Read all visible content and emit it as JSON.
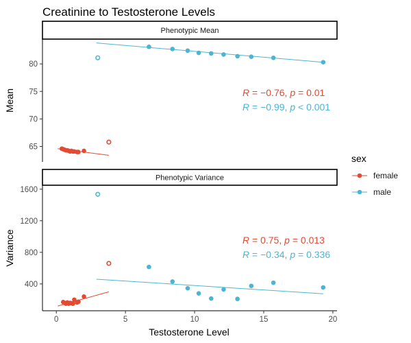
{
  "chart_data": {
    "type": "scatter",
    "title": "Creatinine to Testosterone Levels",
    "xlabel": "Testosterone Level",
    "xlim": [
      -1,
      20.3
    ],
    "x_ticks": [
      0,
      5,
      10,
      15,
      20
    ],
    "legend": {
      "title": "sex",
      "position": "right",
      "entries": [
        {
          "label": "female",
          "color": "#E24A33"
        },
        {
          "label": "male",
          "color": "#4CB5D3"
        }
      ]
    },
    "grid": false,
    "facets": [
      {
        "strip": "Phenotypic Mean",
        "ylabel": "Mean",
        "ylim": [
          62.2,
          84.5
        ],
        "y_ticks": [
          65,
          70,
          75,
          80
        ],
        "stats": [
          {
            "sex": "female",
            "r": "−0.76",
            "p_op": "=",
            "p": "0.01"
          },
          {
            "sex": "male",
            "r": "−0.99",
            "p_op": "<",
            "p": "0.001"
          }
        ],
        "series": [
          {
            "sex": "female",
            "points": [
              [
                0.4,
                64.6
              ],
              [
                0.5,
                64.5
              ],
              [
                0.6,
                64.4
              ],
              [
                0.7,
                64.3
              ],
              [
                0.8,
                64.3
              ],
              [
                0.9,
                64.2
              ],
              [
                1.0,
                64.1
              ],
              [
                1.1,
                64.2
              ],
              [
                1.2,
                64.1
              ],
              [
                1.3,
                64.1
              ],
              [
                1.5,
                64.0
              ],
              [
                1.6,
                64.0
              ],
              [
                2.0,
                64.2
              ]
            ],
            "outliers": [
              [
                3.8,
                65.8
              ]
            ],
            "fit": [
              [
                0.1,
                64.6
              ],
              [
                3.8,
                63.4
              ]
            ]
          },
          {
            "sex": "male",
            "points": [
              [
                6.7,
                83.1
              ],
              [
                8.4,
                82.7
              ],
              [
                9.5,
                82.4
              ],
              [
                10.3,
                82.0
              ],
              [
                11.2,
                81.9
              ],
              [
                12.1,
                81.7
              ],
              [
                13.1,
                81.4
              ],
              [
                14.1,
                81.3
              ],
              [
                15.7,
                81.1
              ],
              [
                19.3,
                80.3
              ]
            ],
            "outliers": [
              [
                3.0,
                81.1
              ]
            ],
            "fit": [
              [
                2.9,
                83.8
              ],
              [
                19.3,
                80.3
              ]
            ]
          }
        ]
      },
      {
        "strip": "Phenotypic Variance",
        "ylabel": "Variance",
        "ylim": [
          60,
          1650
        ],
        "y_ticks": [
          400,
          800,
          1200,
          1600
        ],
        "stats": [
          {
            "sex": "female",
            "r": "0.75",
            "p_op": "=",
            "p": "0.013"
          },
          {
            "sex": "male",
            "r": "−0.34",
            "p_op": "=",
            "p": "0.336"
          }
        ],
        "series": [
          {
            "sex": "female",
            "points": [
              [
                0.5,
                170
              ],
              [
                0.6,
                160
              ],
              [
                0.7,
                150
              ],
              [
                0.8,
                165
              ],
              [
                0.9,
                150
              ],
              [
                1.0,
                160
              ],
              [
                1.1,
                155
              ],
              [
                1.2,
                150
              ],
              [
                1.3,
                200
              ],
              [
                1.5,
                165
              ],
              [
                1.6,
                175
              ],
              [
                2.0,
                240
              ]
            ],
            "outliers": [
              [
                3.8,
                660
              ]
            ],
            "fit": [
              [
                0.1,
                120
              ],
              [
                3.8,
                300
              ]
            ]
          },
          {
            "sex": "male",
            "points": [
              [
                6.7,
                615
              ],
              [
                8.4,
                430
              ],
              [
                9.5,
                345
              ],
              [
                10.3,
                280
              ],
              [
                11.2,
                215
              ],
              [
                12.1,
                330
              ],
              [
                13.1,
                210
              ],
              [
                14.1,
                375
              ],
              [
                15.7,
                415
              ],
              [
                19.3,
                355
              ]
            ],
            "outliers": [
              [
                3.0,
                1535
              ]
            ],
            "fit": [
              [
                2.9,
                460
              ],
              [
                19.3,
                275
              ]
            ]
          }
        ]
      }
    ]
  }
}
